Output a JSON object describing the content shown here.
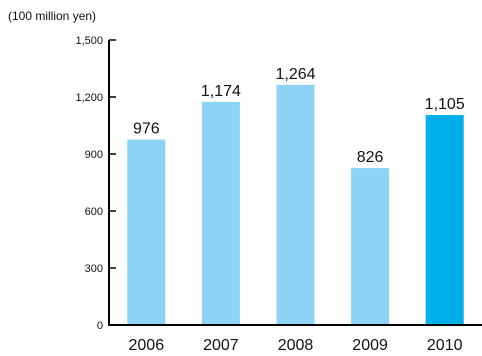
{
  "chart_data": {
    "type": "bar",
    "unit_label": "(100 million yen)",
    "categories": [
      "2006",
      "2007",
      "2008",
      "2009",
      "2010"
    ],
    "values": [
      976,
      1174,
      1264,
      826,
      1105
    ],
    "value_labels": [
      "976",
      "1,174",
      "1,264",
      "826",
      "1,105"
    ],
    "ylim": [
      0,
      1500
    ],
    "yticks": [
      0,
      300,
      600,
      900,
      1200,
      1500
    ],
    "ytick_labels": [
      "0",
      "300",
      "600",
      "900",
      "1,200",
      "1,500"
    ],
    "grid": false,
    "colors": {
      "bar": "#8dd3f5",
      "highlight_bar": "#00aeea",
      "axis": "#000000"
    },
    "highlight_category": "2010"
  }
}
